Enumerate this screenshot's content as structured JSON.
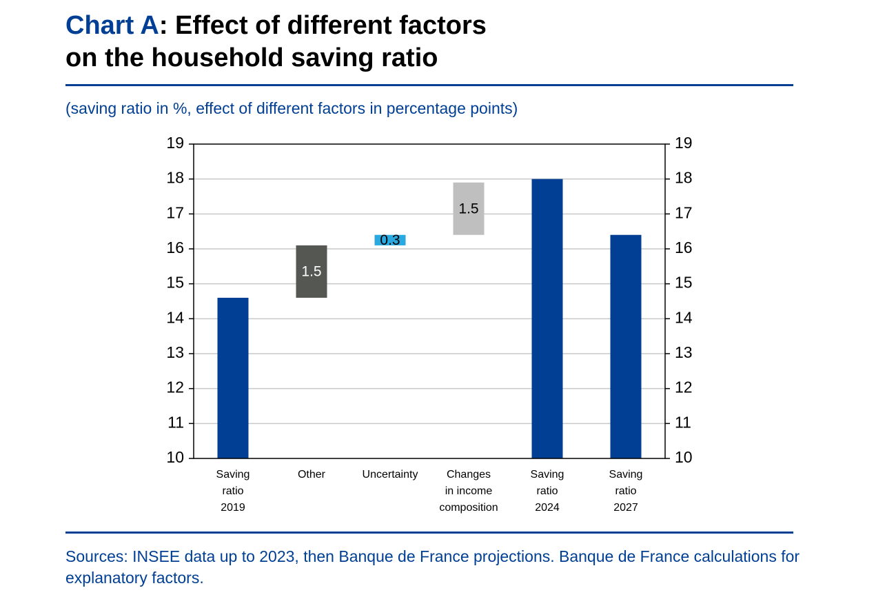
{
  "chart_data": {
    "type": "waterfall",
    "title_label": "Chart A",
    "title": ": Effect of different factors\non the household saving ratio",
    "subtitle": "(saving ratio in %, effect of different factors in percentage points)",
    "source": "Sources: INSEE data up to 2023, then Banque de France projections. Banque de France calculations for explanatory factors.",
    "categories": [
      "Saving\nratio\n2019",
      "Other",
      "Uncertainty",
      "Changes\nin income\ncomposition",
      "Saving\nratio\n2024",
      "Saving\nratio\n2027"
    ],
    "values": [
      14.6,
      1.5,
      0.3,
      1.5,
      18.0,
      16.4
    ],
    "kinds": [
      "total",
      "delta",
      "delta",
      "delta",
      "total",
      "total"
    ],
    "colors": [
      "#003f94",
      "#555753",
      "#29a9e0",
      "#bfbfbf",
      "#003f94",
      "#003f94"
    ],
    "label_colors": [
      "#000000",
      "#ffffff",
      "#000000",
      "#000000",
      "#000000",
      "#000000"
    ],
    "ylim": [
      10,
      19
    ],
    "yticks": [
      10,
      11,
      12,
      13,
      14,
      15,
      16,
      17,
      18,
      19
    ],
    "y2lim": [
      10,
      19
    ],
    "y2ticks": [
      10,
      11,
      12,
      13,
      14,
      15,
      16,
      17,
      18,
      19
    ],
    "grid": true
  }
}
